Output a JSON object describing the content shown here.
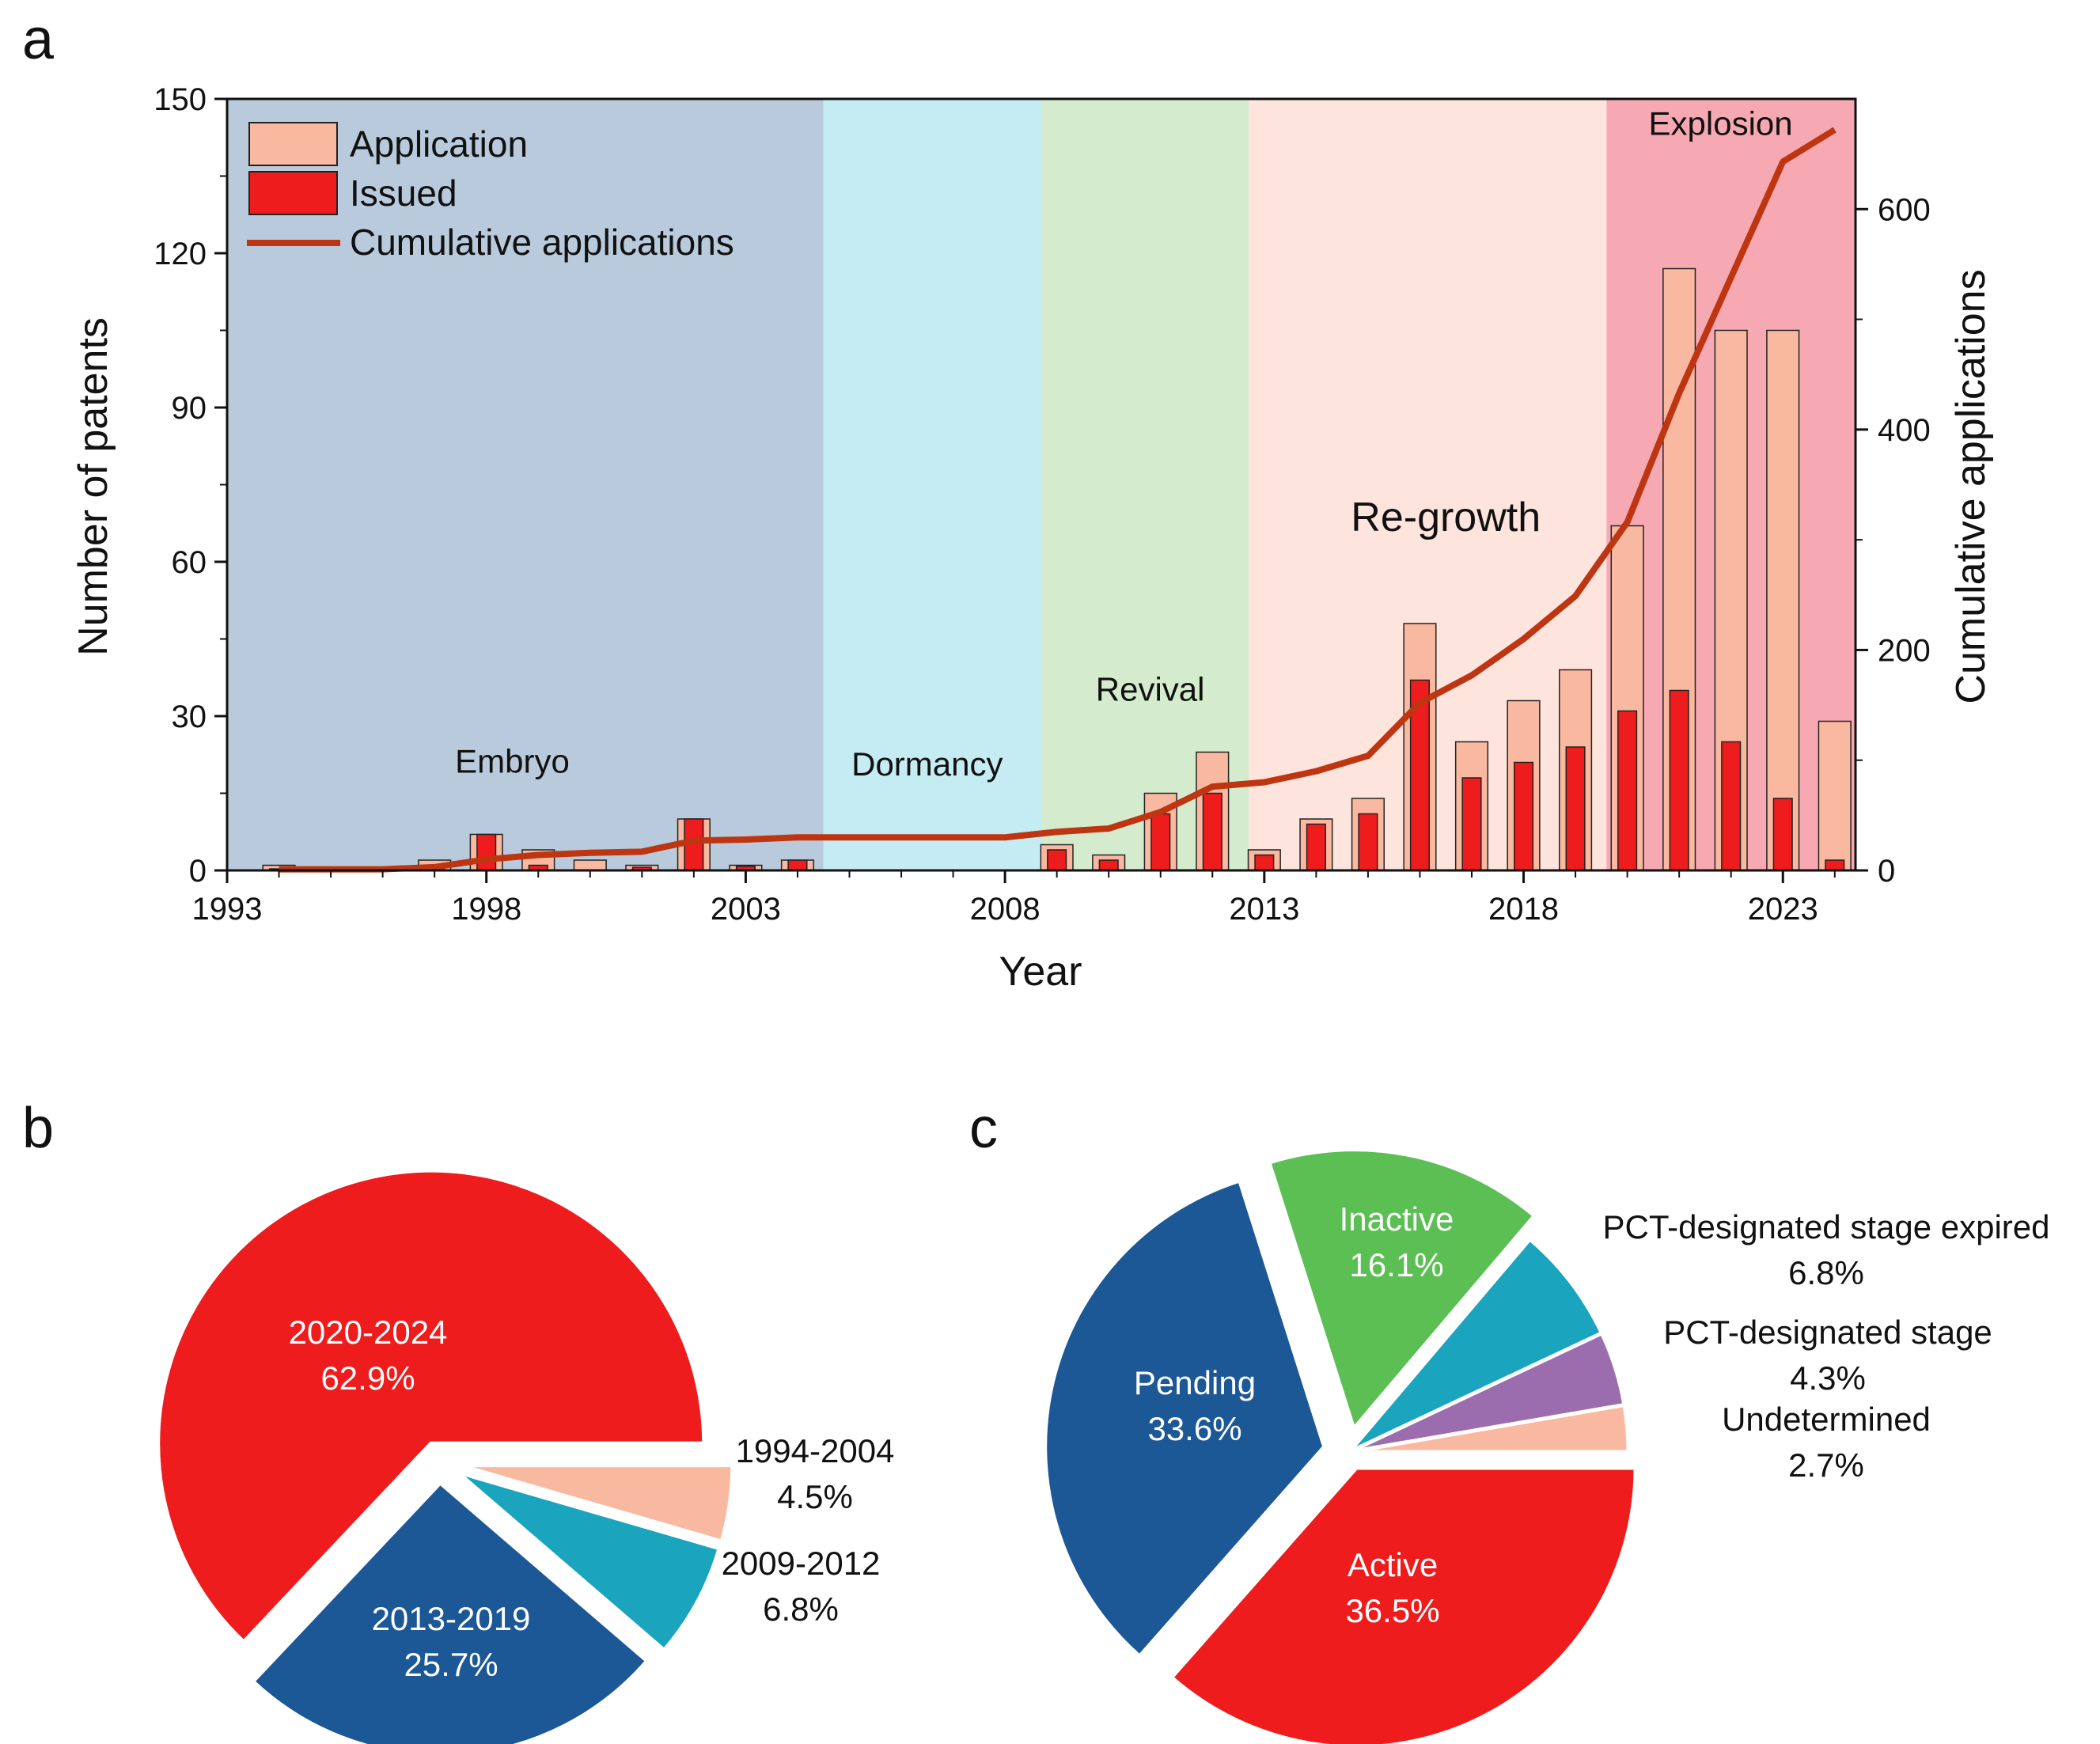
{
  "panels": {
    "a": "a",
    "b": "b",
    "c": "c"
  },
  "colors": {
    "application": "#f9b9a1",
    "issued": "#ee1c1c",
    "cumulative": "#be3512",
    "embryo_bg": "#b8cadb",
    "dormancy_bg": "#c6ecf3",
    "revival_bg": "#d4eccd",
    "regrowth_bg": "#fde4dd",
    "explosion_bg": "#f6a9b2"
  },
  "chart_data": [
    {
      "id": "a",
      "type": "bar",
      "xlabel": "Year",
      "ylabel": "Number of patents",
      "y2label": "Cumulative applications",
      "xlim": [
        1993,
        2024.4
      ],
      "ylim": [
        0,
        150
      ],
      "y2lim": [
        0,
        700
      ],
      "xticks": [
        "1993",
        "1998",
        "2003",
        "2008",
        "2013",
        "2018",
        "2023"
      ],
      "yticks": [
        "0",
        "30",
        "60",
        "90",
        "120",
        "150"
      ],
      "y2ticks": [
        "0",
        "200",
        "400",
        "600"
      ],
      "legend": [
        "Application",
        "Issued",
        "Cumulative applications"
      ],
      "legend_position": "top-left",
      "phases": [
        {
          "name": "Embryo",
          "start": 1993,
          "end": 2004.5,
          "label_x": 1998.5,
          "label_y": 19
        },
        {
          "name": "Dormancy",
          "start": 2004.5,
          "end": 2008.7,
          "label_x": 2006.5,
          "label_y": 18.5
        },
        {
          "name": "Revival",
          "start": 2008.7,
          "end": 2012.7,
          "label_x": 2010.8,
          "label_y": 33
        },
        {
          "name": "Re-growth",
          "start": 2012.7,
          "end": 2019.6,
          "label_x": 2016.5,
          "label_y": 66
        },
        {
          "name": "Explosion",
          "start": 2019.6,
          "end": 2024.4,
          "label_x": 2021.8,
          "label_y": 143
        }
      ],
      "years": [
        1994,
        1995,
        1996,
        1997,
        1998,
        1999,
        2000,
        2001,
        2002,
        2003,
        2004,
        2005,
        2006,
        2007,
        2008,
        2009,
        2010,
        2011,
        2012,
        2013,
        2014,
        2015,
        2016,
        2017,
        2018,
        2019,
        2020,
        2021,
        2022,
        2023,
        2024
      ],
      "series": [
        {
          "name": "Application",
          "values": [
            1,
            0,
            0,
            2,
            7,
            4,
            2,
            1,
            10,
            1,
            2,
            0,
            0,
            0,
            0,
            5,
            3,
            15,
            23,
            4,
            10,
            14,
            48,
            25,
            33,
            39,
            67,
            117,
            105,
            105,
            29
          ]
        },
        {
          "name": "Issued",
          "values": [
            0.3,
            0,
            0,
            1,
            7,
            1,
            0,
            0.6,
            10,
            0.8,
            2,
            0,
            0,
            0,
            0,
            4,
            2,
            11,
            15,
            3,
            9,
            11,
            37,
            18,
            21,
            24,
            31,
            35,
            25,
            14,
            2
          ]
        },
        {
          "name": "Cumulative applications",
          "axis": "right",
          "values": [
            1,
            1,
            1,
            3,
            10,
            14,
            16,
            17,
            27,
            28,
            30,
            30,
            30,
            30,
            30,
            35,
            38,
            53,
            76,
            80,
            90,
            104,
            152,
            177,
            210,
            249,
            316,
            433,
            538,
            643,
            672
          ]
        }
      ]
    },
    {
      "id": "b",
      "type": "pie",
      "slices": [
        {
          "label": "2020-2024",
          "pct_label": "62.9%",
          "value": 62.9,
          "label_pos": "inside"
        },
        {
          "label": "2013-2019",
          "pct_label": "25.7%",
          "value": 25.7,
          "label_pos": "inside"
        },
        {
          "label": "2009-2012",
          "pct_label": "6.8%",
          "value": 6.8,
          "label_pos": "outside"
        },
        {
          "label": "1994-2004",
          "pct_label": "4.5%",
          "value": 4.5,
          "label_pos": "outside"
        }
      ]
    },
    {
      "id": "c",
      "type": "pie",
      "slices": [
        {
          "label": "Active",
          "pct_label": "36.5%",
          "value": 36.5,
          "label_pos": "inside"
        },
        {
          "label": "Pending",
          "pct_label": "33.6%",
          "value": 33.6,
          "label_pos": "inside"
        },
        {
          "label": "Inactive",
          "pct_label": "16.1%",
          "value": 16.1,
          "label_pos": "inside"
        },
        {
          "label": "PCT-designated stage expired",
          "pct_label": "6.8%",
          "value": 6.8,
          "label_pos": "outside"
        },
        {
          "label": "PCT-designated stage",
          "pct_label": "4.3%",
          "value": 4.3,
          "label_pos": "outside"
        },
        {
          "label": "Undetermined",
          "pct_label": "2.7%",
          "value": 2.7,
          "label_pos": "outside"
        }
      ]
    }
  ]
}
